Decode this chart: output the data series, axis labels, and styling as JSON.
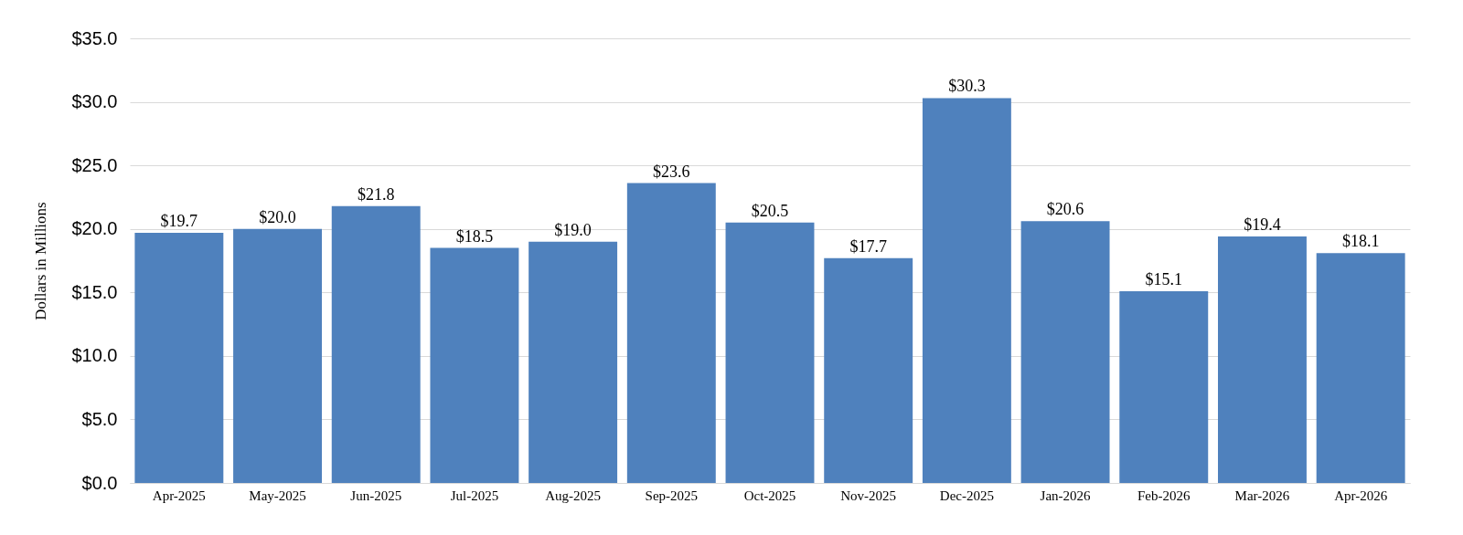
{
  "chart_data": {
    "type": "bar",
    "ylabel": "Dollars in Millions",
    "categories": [
      "Apr-2025",
      "May-2025",
      "Jun-2025",
      "Jul-2025",
      "Aug-2025",
      "Sep-2025",
      "Oct-2025",
      "Nov-2025",
      "Dec-2025",
      "Jan-2026",
      "Feb-2026",
      "Mar-2026",
      "Apr-2026"
    ],
    "values": [
      19.7,
      20.0,
      21.8,
      18.5,
      19.0,
      23.6,
      20.5,
      17.7,
      30.3,
      20.6,
      15.1,
      19.4,
      18.1
    ],
    "value_labels": [
      "$19.7",
      "$20.0",
      "$21.8",
      "$18.5",
      "$19.0",
      "$23.6",
      "$20.5",
      "$17.7",
      "$30.3",
      "$20.6",
      "$15.1",
      "$19.4",
      "$18.1"
    ],
    "color": "#4f81bd",
    "ylim": [
      0,
      35
    ],
    "yticks": [
      {
        "value": 0,
        "label": "$0.0"
      },
      {
        "value": 5,
        "label": "$5.0"
      },
      {
        "value": 10,
        "label": "$10.0"
      },
      {
        "value": 15,
        "label": "$15.0"
      },
      {
        "value": 20,
        "label": "$20.0"
      },
      {
        "value": 25,
        "label": "$25.0"
      },
      {
        "value": 30,
        "label": "$30.0"
      },
      {
        "value": 35,
        "label": "$35.0"
      }
    ],
    "grid": "y"
  }
}
